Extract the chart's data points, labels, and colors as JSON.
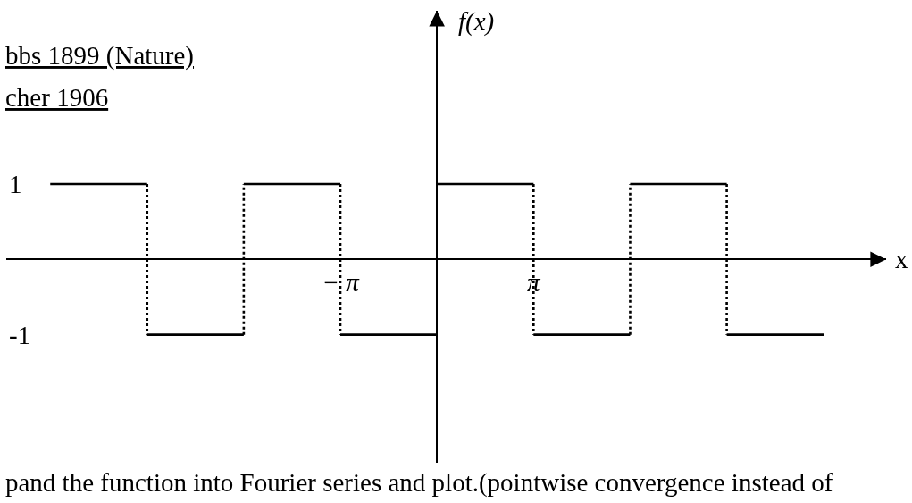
{
  "chart_data": {
    "type": "line",
    "xlabel": "x",
    "ylabel": "f(x)",
    "annotations": [
      "bbs 1899 (Nature)",
      "cher 1906",
      "pand the function into Fourier series and plot.(pointwise convergence instead of"
    ],
    "xlim": [
      -14,
      14.6
    ],
    "xticks": [
      {
        "value": -3.14,
        "label": "− π"
      },
      {
        "value": 3.14,
        "label": "π"
      }
    ],
    "ylim": [
      -2.7,
      3.3
    ],
    "yticks": [
      -1,
      1
    ],
    "marker": "none",
    "line_style": "solid",
    "series": [
      {
        "color": "#000000",
        "x": [
          -12.57,
          -9.42
        ],
        "values": [
          1,
          1
        ]
      },
      {
        "color": "#000000",
        "x": [
          -9.42,
          -6.28
        ],
        "values": [
          -1,
          -1
        ]
      },
      {
        "color": "#000000",
        "x": [
          -6.28,
          -3.14
        ],
        "values": [
          1,
          1
        ]
      },
      {
        "color": "#000000",
        "x": [
          -3.14,
          0
        ],
        "values": [
          -1,
          -1
        ]
      },
      {
        "color": "#000000",
        "x": [
          0,
          3.14
        ],
        "values": [
          1,
          1
        ]
      },
      {
        "color": "#000000",
        "x": [
          3.14,
          6.28
        ],
        "values": [
          -1,
          -1
        ]
      },
      {
        "color": "#000000",
        "x": [
          6.28,
          9.42
        ],
        "values": [
          1,
          1
        ]
      },
      {
        "color": "#000000",
        "x": [
          9.42,
          12.57
        ],
        "values": [
          -1,
          -1
        ]
      },
      {
        "color": "#000000",
        "line_style": "dotted",
        "x": [
          -9.42,
          -9.42
        ],
        "values": [
          1,
          -1
        ]
      },
      {
        "color": "#000000",
        "line_style": "dotted",
        "x": [
          -6.28,
          -6.28
        ],
        "values": [
          -1,
          1
        ]
      },
      {
        "color": "#000000",
        "line_style": "dotted",
        "x": [
          -3.14,
          -3.14
        ],
        "values": [
          1,
          -1
        ]
      },
      {
        "color": "#000000",
        "line_style": "dotted",
        "x": [
          3.14,
          3.14
        ],
        "values": [
          1,
          -1
        ]
      },
      {
        "color": "#000000",
        "line_style": "dotted",
        "x": [
          6.28,
          6.28
        ],
        "values": [
          -1,
          1
        ]
      },
      {
        "color": "#000000",
        "line_style": "dotted",
        "x": [
          9.42,
          9.42
        ],
        "values": [
          1,
          -1
        ]
      }
    ]
  }
}
